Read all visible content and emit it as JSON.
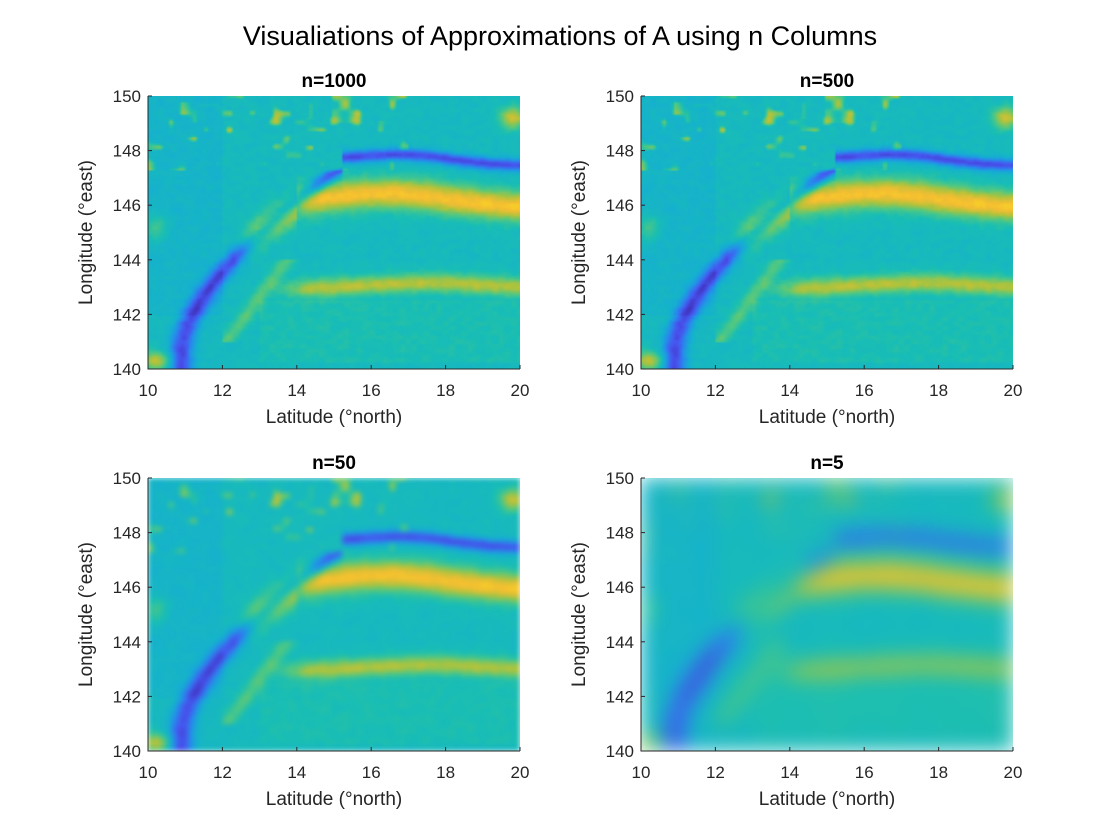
{
  "figure": {
    "title": "Visualiations of Approximations of A using n Columns"
  },
  "chart_data": [
    {
      "type": "heatmap",
      "title": "n=1000",
      "xlabel": "Latitude (°north)",
      "ylabel": "Longitude (°east)",
      "xlim": [
        10,
        20
      ],
      "ylim": [
        140,
        150
      ],
      "xticks": [
        "10",
        "12",
        "14",
        "16",
        "18",
        "20"
      ],
      "yticks": [
        "140",
        "142",
        "144",
        "146",
        "148",
        "150"
      ],
      "colormap": "parula",
      "blur_level": 0.6
    },
    {
      "type": "heatmap",
      "title": "n=500",
      "xlabel": "Latitude (°north)",
      "ylabel": "Longitude (°east)",
      "xlim": [
        10,
        20
      ],
      "ylim": [
        140,
        150
      ],
      "xticks": [
        "10",
        "12",
        "14",
        "16",
        "18",
        "20"
      ],
      "yticks": [
        "140",
        "142",
        "144",
        "146",
        "148",
        "150"
      ],
      "colormap": "parula",
      "blur_level": 0.6
    },
    {
      "type": "heatmap",
      "title": "n=50",
      "xlabel": "Latitude (°north)",
      "ylabel": "Longitude (°east)",
      "xlim": [
        10,
        20
      ],
      "ylim": [
        140,
        150
      ],
      "xticks": [
        "10",
        "12",
        "14",
        "16",
        "18",
        "20"
      ],
      "yticks": [
        "140",
        "142",
        "144",
        "146",
        "148",
        "150"
      ],
      "colormap": "parula",
      "blur_level": 1.2
    },
    {
      "type": "heatmap",
      "title": "n=5",
      "xlabel": "Latitude (°north)",
      "ylabel": "Longitude (°east)",
      "xlim": [
        10,
        20
      ],
      "ylim": [
        140,
        150
      ],
      "xticks": [
        "10",
        "12",
        "14",
        "16",
        "18",
        "20"
      ],
      "yticks": [
        "140",
        "142",
        "144",
        "146",
        "148",
        "150"
      ],
      "colormap": "parula",
      "blur_level": 5
    }
  ]
}
